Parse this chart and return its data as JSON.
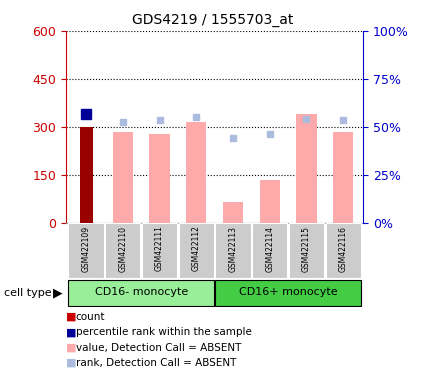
{
  "title": "GDS4219 / 1555703_at",
  "samples": [
    "GSM422109",
    "GSM422110",
    "GSM422111",
    "GSM422112",
    "GSM422113",
    "GSM422114",
    "GSM422115",
    "GSM422116"
  ],
  "count_values": [
    300,
    null,
    null,
    null,
    null,
    null,
    null,
    null
  ],
  "count_color": "#990000",
  "percentile_values": [
    340,
    null,
    null,
    null,
    null,
    null,
    null,
    null
  ],
  "percentile_color": "#000099",
  "value_absent": [
    null,
    285,
    278,
    315,
    65,
    135,
    340,
    285
  ],
  "value_absent_color": "#FFAAAA",
  "rank_absent": [
    null,
    315,
    322,
    330,
    265,
    278,
    325,
    320
  ],
  "rank_absent_color": "#AABBDD",
  "ylim_left": [
    0,
    600
  ],
  "ylim_right": [
    0,
    100
  ],
  "yticks_left": [
    0,
    150,
    300,
    450,
    600
  ],
  "yticks_right": [
    0,
    25,
    50,
    75,
    100
  ],
  "yticklabels_left": [
    "0",
    "150",
    "300",
    "450",
    "600"
  ],
  "yticklabels_right": [
    "0%",
    "25%",
    "50%",
    "75%",
    "100%"
  ],
  "group_colors": [
    "#99EE99",
    "#44CC44"
  ],
  "group_labels": [
    "CD16- monocyte",
    "CD16+ monocyte"
  ],
  "group_ranges": [
    [
      0,
      3
    ],
    [
      4,
      7
    ]
  ],
  "legend_items": [
    {
      "label": "count",
      "color": "#CC0000"
    },
    {
      "label": "percentile rank within the sample",
      "color": "#000099"
    },
    {
      "label": "value, Detection Call = ABSENT",
      "color": "#FFAAAA"
    },
    {
      "label": "rank, Detection Call = ABSENT",
      "color": "#AABBDD"
    }
  ],
  "bar_width": 0.55,
  "bg_color": "#FFFFFF",
  "label_color_left": "#CC0000",
  "label_color_right": "#0000CC",
  "sample_box_color": "#CCCCCC",
  "cell_type_label": "cell type"
}
